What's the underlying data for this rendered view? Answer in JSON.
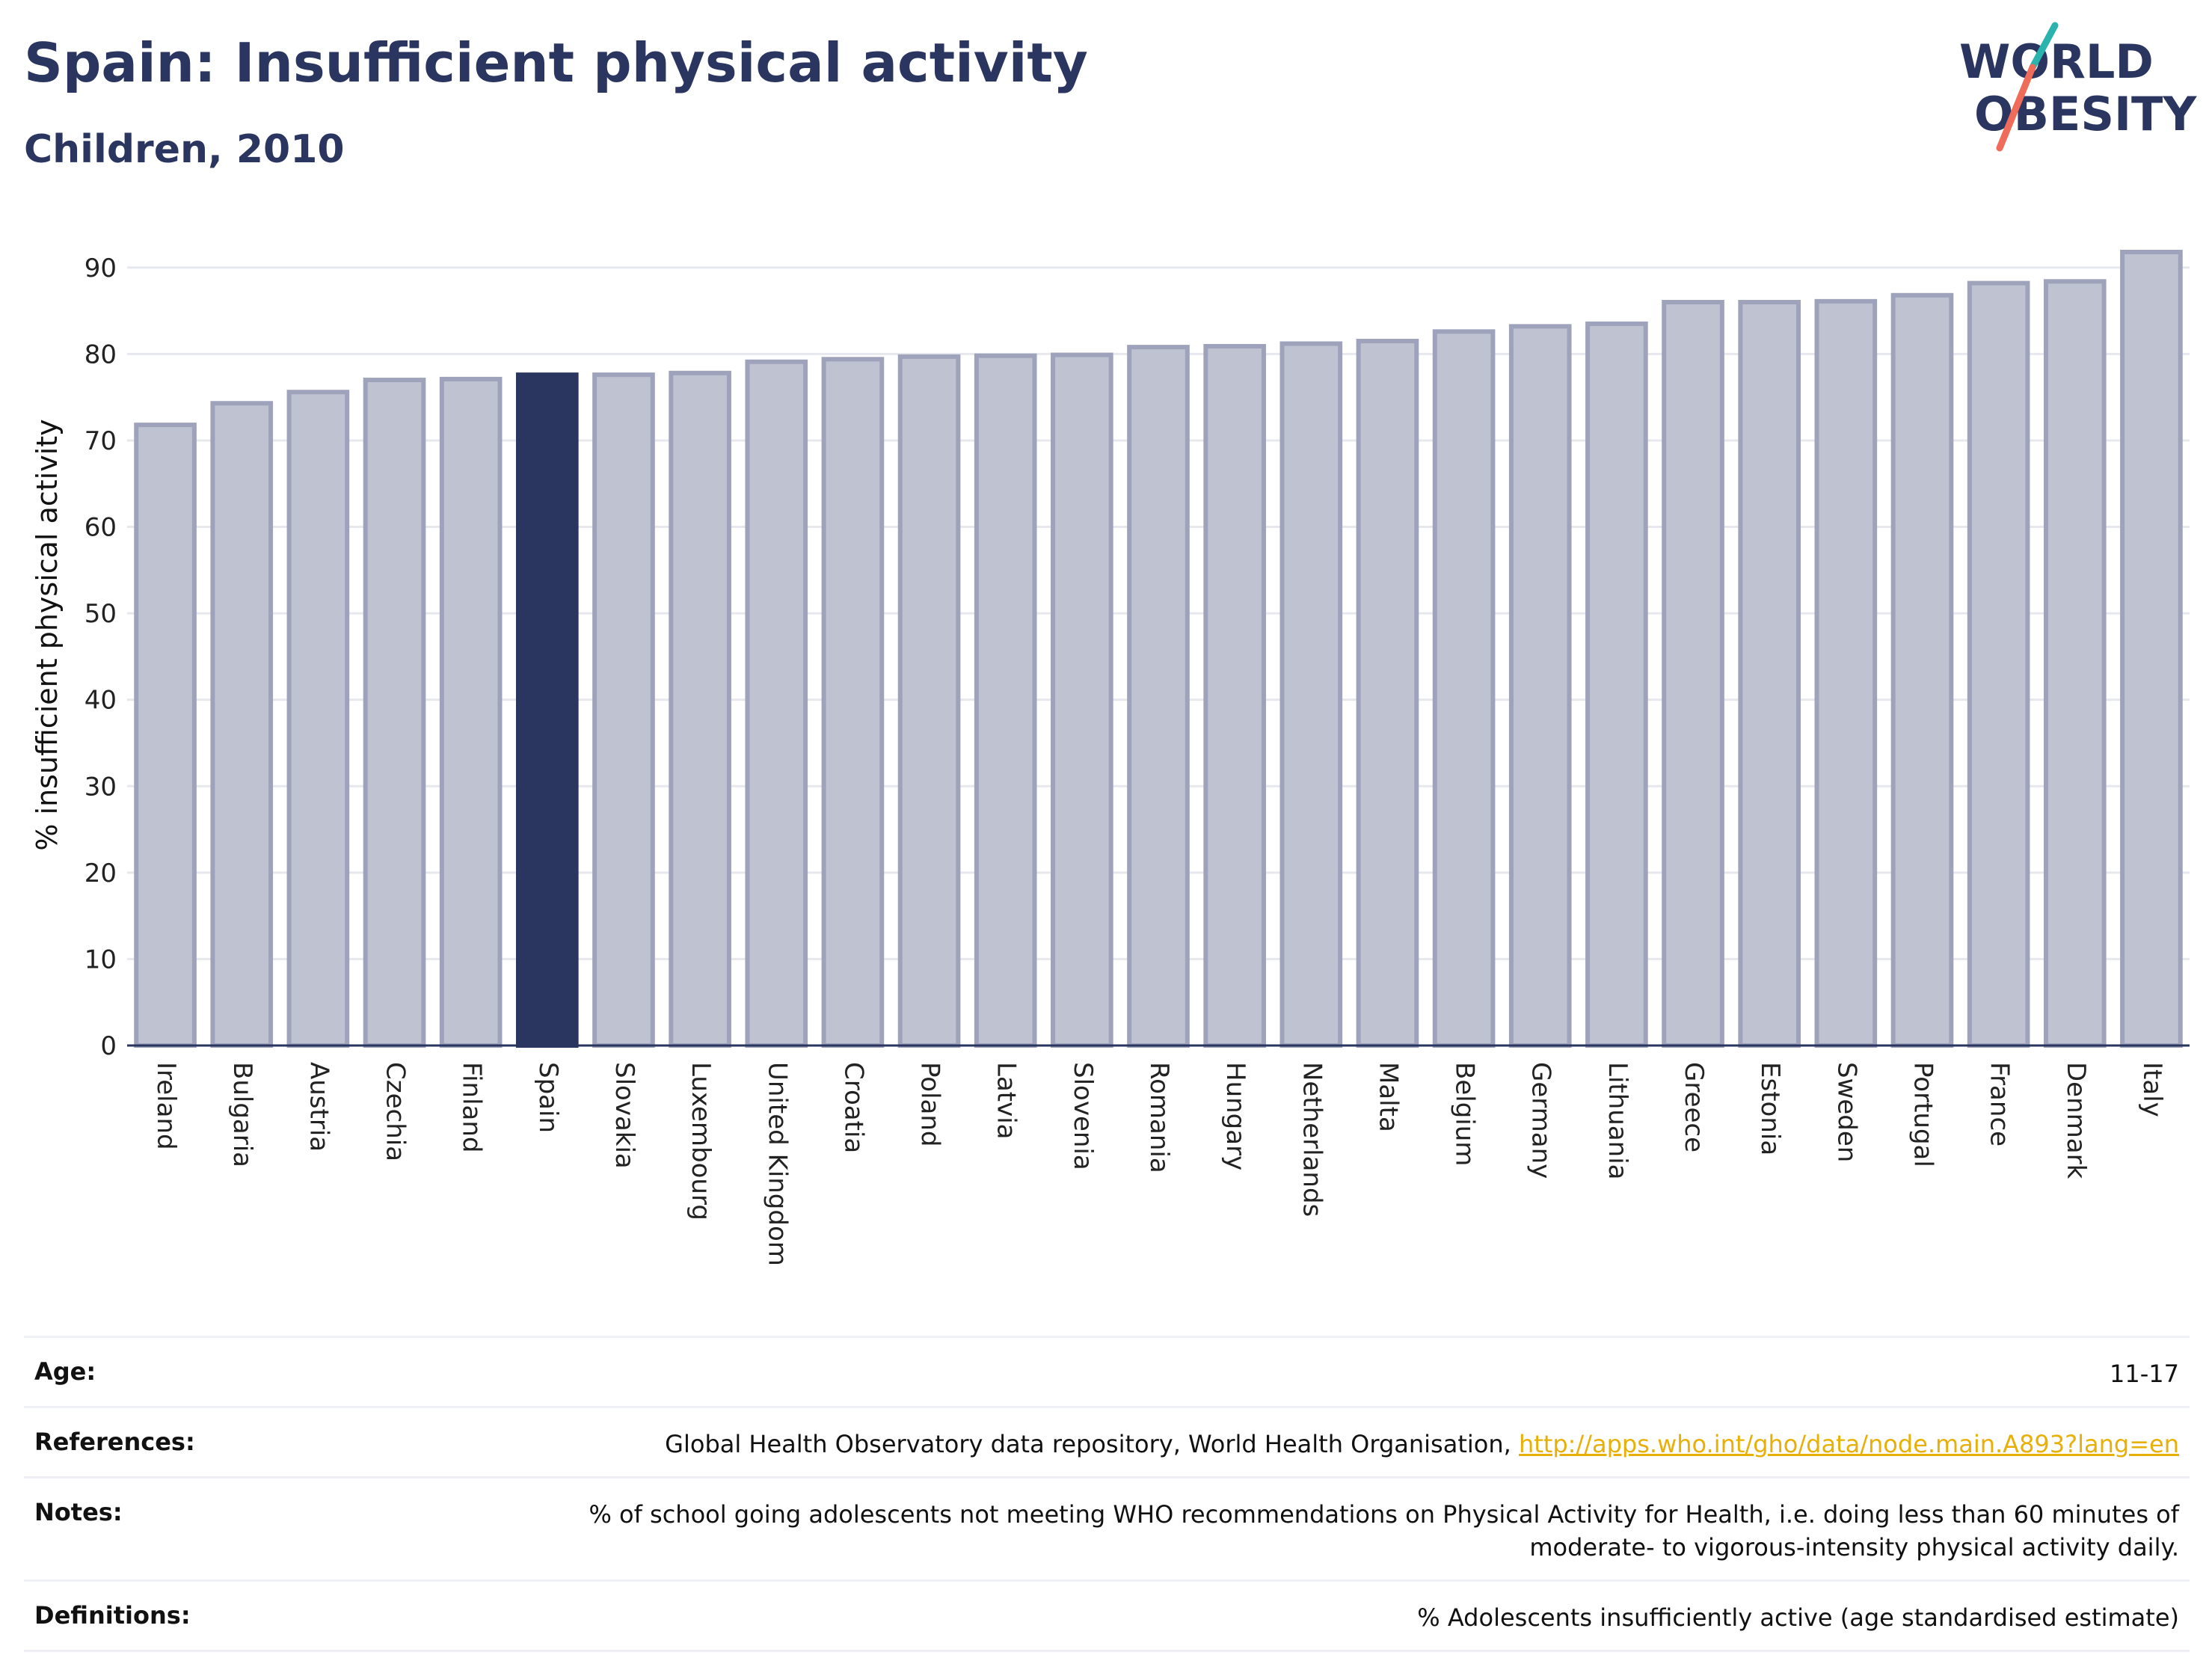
{
  "header": {
    "title": "Spain: Insufficient physical activity",
    "subtitle": "Children, 2010"
  },
  "logo": {
    "line1": "WORLD",
    "line2": "OBESITY",
    "accent_teal": "#2bb3ad",
    "accent_coral": "#ef6c5a",
    "text_color": "#2a3560"
  },
  "colors": {
    "bar_fill": "#bfc2d0",
    "bar_stroke": "#9ea3bb",
    "highlight_fill": "#2a3560",
    "grid": "#e6e8ee",
    "axis": "#2a3560"
  },
  "chart_data": {
    "type": "bar",
    "title": "Spain: Insufficient physical activity",
    "subtitle": "Children, 2010",
    "xlabel": "",
    "ylabel": "% insufficient physical activity",
    "ylim": [
      0,
      95
    ],
    "yticks": [
      0,
      10,
      20,
      30,
      40,
      50,
      60,
      70,
      80,
      90
    ],
    "grid": true,
    "highlight": "Spain",
    "categories": [
      "Ireland",
      "Bulgaria",
      "Austria",
      "Czechia",
      "Finland",
      "Spain",
      "Slovakia",
      "Luxembourg",
      "United Kingdom",
      "Croatia",
      "Poland",
      "Latvia",
      "Slovenia",
      "Romania",
      "Hungary",
      "Netherlands",
      "Malta",
      "Belgium",
      "Germany",
      "Lithuania",
      "Greece",
      "Estonia",
      "Sweden",
      "Portugal",
      "France",
      "Denmark",
      "Italy"
    ],
    "values": [
      71.8,
      74.3,
      75.6,
      77.0,
      77.1,
      77.6,
      77.6,
      77.8,
      79.1,
      79.4,
      79.7,
      79.8,
      79.9,
      80.8,
      80.9,
      81.2,
      81.5,
      82.6,
      83.2,
      83.5,
      86.0,
      86.0,
      86.1,
      86.8,
      88.2,
      88.4,
      91.8
    ]
  },
  "meta": {
    "age_label": "Age:",
    "age_value": "11-17",
    "references_label": "References:",
    "references_text": "Global Health Observatory data repository, World Health Organisation, ",
    "references_link": "http://apps.who.int/gho/data/node.main.A893?lang=en",
    "notes_label": "Notes:",
    "notes_line1": "% of school going adolescents not meeting WHO recommendations on Physical Activity for Health, i.e. doing less than 60 minutes of",
    "notes_line2": "moderate- to vigorous-intensity physical activity daily.",
    "definitions_label": "Definitions:",
    "definitions_value": "% Adolescents insufficiently active (age standardised estimate)"
  }
}
